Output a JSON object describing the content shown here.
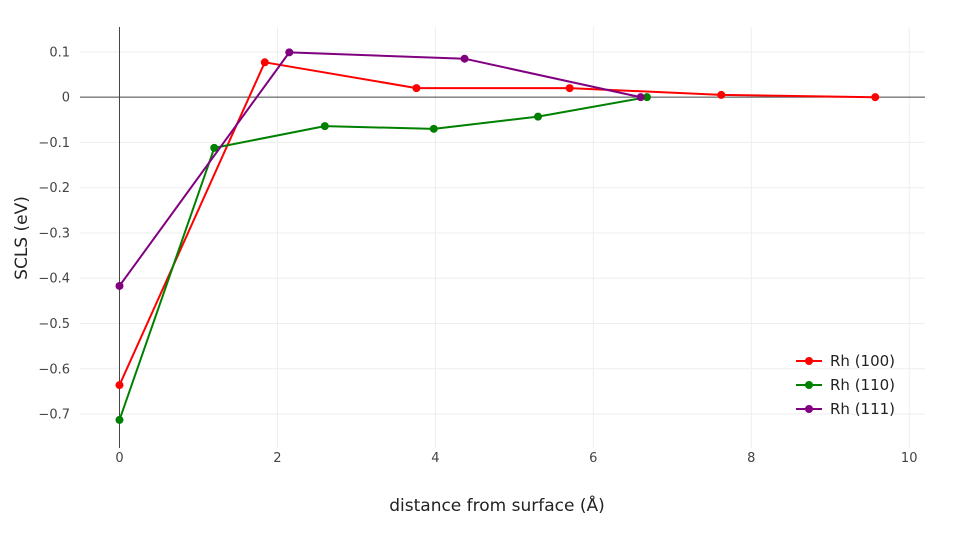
{
  "chart_data": {
    "type": "line",
    "xlabel": "distance from surface (Å)",
    "ylabel": "SCLS (eV)",
    "xlim": [
      -0.5,
      10.2
    ],
    "ylim": [
      -0.775,
      0.155
    ],
    "xticks": [
      0,
      2,
      4,
      6,
      8,
      10
    ],
    "xtick_labels": [
      "0",
      "2",
      "4",
      "6",
      "8",
      "10"
    ],
    "yticks": [
      0.1,
      0,
      -0.1,
      -0.2,
      -0.3,
      -0.4,
      -0.5,
      -0.6,
      -0.7
    ],
    "ytick_labels": [
      "0.1",
      "0",
      "−0.1",
      "−0.2",
      "−0.3",
      "−0.4",
      "−0.5",
      "−0.6",
      "−0.7"
    ],
    "grid": true,
    "legend_position": "bottom-right",
    "series": [
      {
        "name": "Rh (100)",
        "color": "#ff0000",
        "x": [
          0,
          1.84,
          3.76,
          5.7,
          7.62,
          9.57
        ],
        "y": [
          -0.636,
          0.077,
          0.02,
          0.02,
          0.005,
          0.0
        ]
      },
      {
        "name": "Rh (110)",
        "color": "#008000",
        "x": [
          0,
          1.2,
          2.6,
          3.98,
          5.3,
          6.68
        ],
        "y": [
          -0.713,
          -0.112,
          -0.064,
          -0.07,
          -0.043,
          0.0
        ]
      },
      {
        "name": "Rh (111)",
        "color": "#800080",
        "x": [
          0,
          2.15,
          4.37,
          6.6
        ],
        "y": [
          -0.417,
          0.099,
          0.085,
          0.0
        ]
      }
    ]
  }
}
